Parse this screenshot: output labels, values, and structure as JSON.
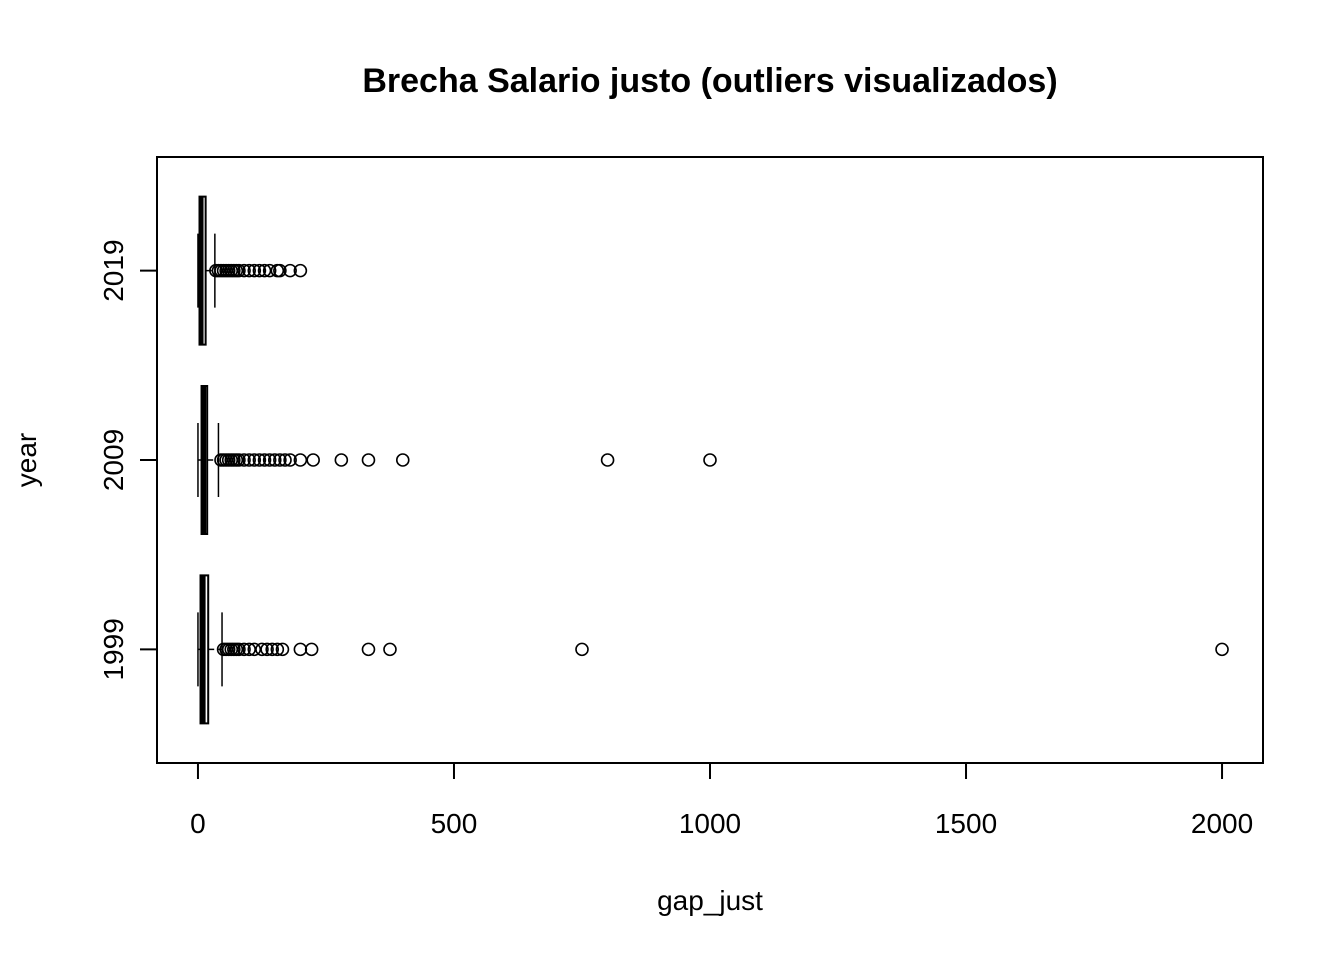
{
  "chart_data": {
    "type": "boxplot",
    "orientation": "horizontal",
    "title": "Brecha Salario justo (outliers visualizados)",
    "xlabel": "gap_just",
    "ylabel": "year",
    "xlim": [
      -80,
      2080
    ],
    "x_ticks": [
      0,
      500,
      1000,
      1500,
      2000
    ],
    "x_tick_labels": [
      "0",
      "500",
      "1000",
      "1500",
      "2000"
    ],
    "categories": [
      "1999",
      "2009",
      "2019"
    ],
    "grid": false,
    "legend": "none",
    "boxes": [
      {
        "name": "1999",
        "whisker_low": 0,
        "q1": 5,
        "median": 10,
        "q3": 20,
        "whisker_high": 47,
        "outliers": [
          50,
          55,
          60,
          65,
          70,
          75,
          80,
          90,
          100,
          110,
          125,
          135,
          145,
          155,
          165,
          200,
          222,
          333,
          375,
          750,
          2000
        ]
      },
      {
        "name": "2009",
        "whisker_low": 0,
        "q1": 7,
        "median": 11,
        "q3": 18,
        "whisker_high": 40,
        "outliers": [
          45,
          50,
          55,
          60,
          65,
          70,
          75,
          80,
          90,
          100,
          110,
          120,
          130,
          140,
          150,
          160,
          170,
          180,
          200,
          225,
          280,
          333,
          400,
          800,
          1000
        ]
      },
      {
        "name": "2019",
        "whisker_low": 0,
        "q1": 3,
        "median": 6,
        "q3": 15,
        "whisker_high": 33,
        "outliers": [
          35,
          40,
          45,
          50,
          55,
          60,
          65,
          70,
          75,
          80,
          90,
          100,
          110,
          120,
          130,
          140,
          155,
          160,
          180,
          200
        ]
      }
    ]
  }
}
